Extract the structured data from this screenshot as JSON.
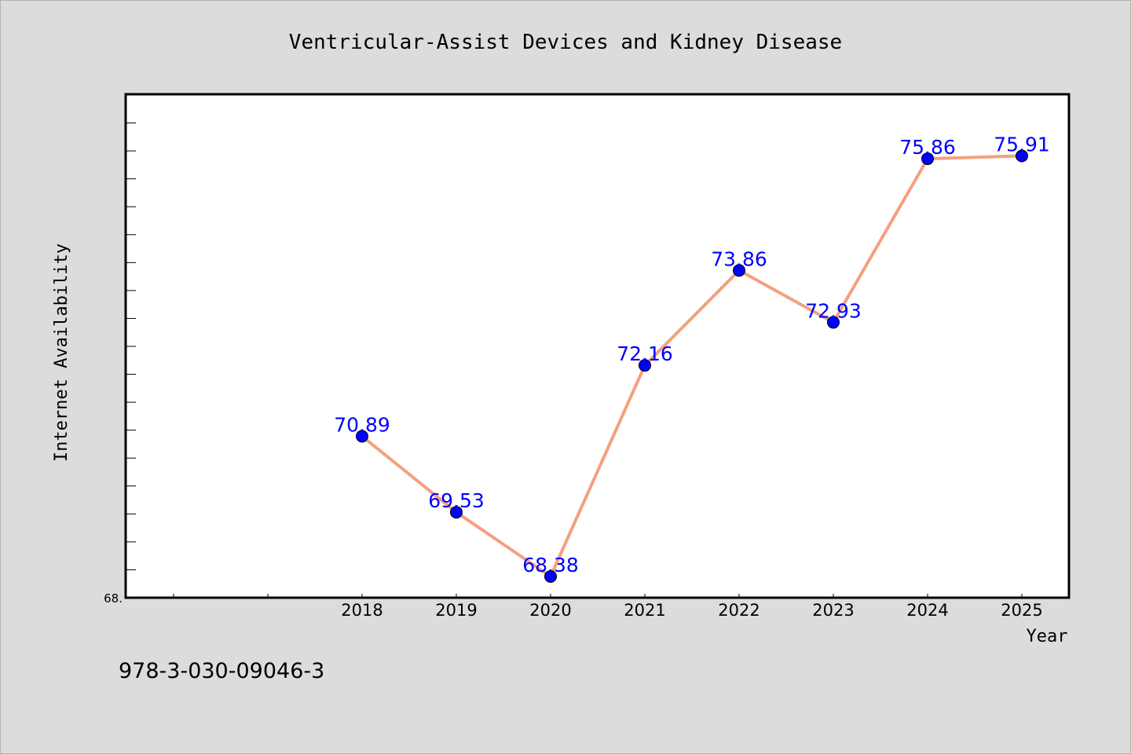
{
  "chart_data": {
    "type": "line",
    "title": "Ventricular-Assist Devices and Kidney Disease",
    "xlabel": "Year",
    "ylabel": "Internet Availability",
    "x": [
      2018,
      2019,
      2020,
      2021,
      2022,
      2023,
      2024,
      2025
    ],
    "x_tick_labels": [
      "2018",
      "2019",
      "2020",
      "2021",
      "2022",
      "2023",
      "2024",
      "2025"
    ],
    "series": [
      {
        "values": [
          70.89,
          69.53,
          68.38,
          72.16,
          73.86,
          72.93,
          75.86,
          75.91
        ],
        "line_color": "#f4a07e",
        "marker_color": "#0000ff"
      }
    ],
    "data_labels": [
      "70.89",
      "69.53",
      "68.38",
      "72.16",
      "73.86",
      "72.93",
      "75.86",
      "75.91"
    ],
    "xlim": [
      2015.5,
      2025.5
    ],
    "ylim": [
      68.0,
      77.0
    ],
    "y_tick_visible_label": "68.",
    "grid": false,
    "legend": "none"
  },
  "footer": {
    "isbn": "978-3-030-09046-3"
  },
  "colors": {
    "background": "#dcdcdc",
    "plot_background": "#ffffff",
    "line": "#f4a07e",
    "marker": "#0000ff",
    "data_label": "#0000ff"
  }
}
